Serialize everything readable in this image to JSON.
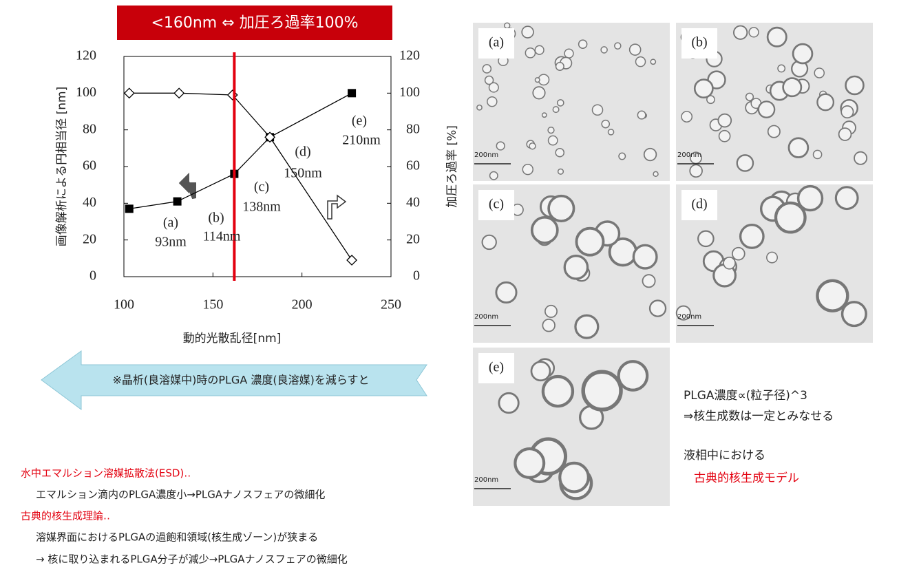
{
  "chart_data": {
    "type": "line",
    "banner": "<160nm ⇔ 加圧ろ過率100%",
    "xlabel": "動的光散乱径[nm]",
    "ylabel": "画像解析による円相当径 [nm]",
    "y2label": "加圧ろ過率 [%]",
    "xlim": [
      100,
      250
    ],
    "xticks": [
      100,
      150,
      200,
      250
    ],
    "ylim": [
      0,
      120
    ],
    "yticks": [
      0,
      20,
      40,
      60,
      80,
      100,
      120
    ],
    "y2lim": [
      0,
      120
    ],
    "y2ticks": [
      0,
      20,
      40,
      60,
      80,
      100,
      120
    ],
    "vline": {
      "x": 162,
      "color": "#e3000f"
    },
    "series": [
      {
        "marker": "square",
        "color": "#000000",
        "x": [
          103,
          130,
          162,
          182,
          228
        ],
        "values": [
          37,
          41,
          56,
          76,
          100
        ]
      },
      {
        "marker": "diamond",
        "color": "#000000",
        "axis": "y2",
        "x": [
          103,
          131,
          161,
          182,
          228
        ],
        "values": [
          100,
          100,
          99,
          76,
          9
        ]
      }
    ],
    "annotations": [
      "(a)",
      "93nm",
      "(b)",
      "114nm",
      "(c)",
      "138nm",
      "(d)",
      "150nm",
      "(e)",
      "210nm"
    ]
  },
  "arrow_text": "※晶析(良溶媒中)時のPLGA 濃度(良溶媒)を減らすと",
  "notes": [
    "水中エマルション溶媒拡散法(ESD)‥",
    "エマルション滴内のPLGA濃度小→PLGAナノスフェアの微細化",
    "古典的核生成理論‥",
    "溶媒界面におけるPLGAの過飽和領域(核生成ゾーン)が狭まる",
    "→ 核に取り込まれるPLGA分子が減少→PLGAナノスフェアの微細化"
  ],
  "panels": [
    {
      "label": "(a)",
      "scale": "200nm"
    },
    {
      "label": "(b)",
      "scale": "200nm"
    },
    {
      "label": "(c)",
      "scale": "200nm"
    },
    {
      "label": "(d)",
      "scale": "200nm"
    },
    {
      "label": "(e)",
      "scale": "200nm"
    }
  ],
  "right_text": [
    "PLGA濃度∝(粒子径)^3",
    "⇒核生成数は一定とみなせる",
    "液相中における",
    "古典的核生成モデル"
  ]
}
